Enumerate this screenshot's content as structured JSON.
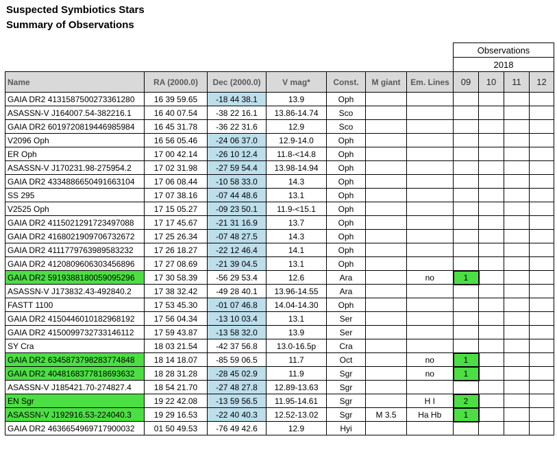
{
  "title": {
    "line1": "Suspected Symbiotics Stars",
    "line2": "Summary of Observations"
  },
  "observations_header": {
    "title": "Observations",
    "year": "2018",
    "months": [
      "09",
      "10",
      "11",
      "12"
    ]
  },
  "columns": {
    "name": "Name",
    "ra": "RA (2000.0)",
    "dec": "Dec (2000.0)",
    "vmag": "V mag*",
    "const": "Const.",
    "mgiant": "M giant",
    "emlines": "Em. Lines"
  },
  "colors": {
    "header_bg": "#D9D9D9",
    "header_text": "#595959",
    "dec_highlight": "#BDDEEB",
    "row_highlight": "#4CDF43",
    "border": "#000000"
  },
  "rows": [
    {
      "name": "GAIA DR2 4131587500273361280",
      "ra": "16 39 59.65",
      "dec": "-18 44 38.1",
      "vmag": "13.9",
      "const": "Oph",
      "mgiant": "",
      "emlines": "",
      "obs09": "",
      "name_green": false,
      "dec_blue": true,
      "obs09_green": false
    },
    {
      "name": "ASASSN-V J164007.54-382216.1",
      "ra": "16 40 07.54",
      "dec": "-38 22 16.1",
      "vmag": "13.86-14.74",
      "const": "Sco",
      "mgiant": "",
      "emlines": "",
      "obs09": "",
      "name_green": false,
      "dec_blue": false,
      "obs09_green": false
    },
    {
      "name": "GAIA DR2 6019720819446985984",
      "ra": "16 45 31.78",
      "dec": "-36 22 31.6",
      "vmag": "12.9",
      "const": "Sco",
      "mgiant": "",
      "emlines": "",
      "obs09": "",
      "name_green": false,
      "dec_blue": false,
      "obs09_green": false
    },
    {
      "name": "V2096 Oph",
      "ra": "16 56 05.46",
      "dec": "-24 06 37.0",
      "vmag": "12.9-14.0",
      "const": "Oph",
      "mgiant": "",
      "emlines": "",
      "obs09": "",
      "name_green": false,
      "dec_blue": true,
      "obs09_green": false
    },
    {
      "name": "ER Oph",
      "ra": "17 00 42.14",
      "dec": "-26 10 12.4",
      "vmag": "11.8-<14.8",
      "const": "Oph",
      "mgiant": "",
      "emlines": "",
      "obs09": "",
      "name_green": false,
      "dec_blue": true,
      "obs09_green": false
    },
    {
      "name": "ASASSN-V J170231.98-275954.2",
      "ra": "17 02 31.98",
      "dec": "-27 59 54.4",
      "vmag": "13.98-14.94",
      "const": "Oph",
      "mgiant": "",
      "emlines": "",
      "obs09": "",
      "name_green": false,
      "dec_blue": true,
      "obs09_green": false
    },
    {
      "name": "GAIA DR2 4334886650491663104",
      "ra": "17 06 08.44",
      "dec": "-10 58 33.0",
      "vmag": "14.3",
      "const": "Oph",
      "mgiant": "",
      "emlines": "",
      "obs09": "",
      "name_green": false,
      "dec_blue": true,
      "obs09_green": false
    },
    {
      "name": "SS 295",
      "ra": "17 07 38.16",
      "dec": "-07 44 48.6",
      "vmag": "13.1",
      "const": "Oph",
      "mgiant": "",
      "emlines": "",
      "obs09": "",
      "name_green": false,
      "dec_blue": true,
      "obs09_green": false
    },
    {
      "name": "V2525 Oph",
      "ra": "17 15 05.27",
      "dec": "-09 23 50.1",
      "vmag": "11.9-<15.1",
      "const": "Oph",
      "mgiant": "",
      "emlines": "",
      "obs09": "",
      "name_green": false,
      "dec_blue": true,
      "obs09_green": false
    },
    {
      "name": "GAIA DR2 4115021291723497088",
      "ra": "17 17 45.67",
      "dec": "-21 31 16.9",
      "vmag": "13.7",
      "const": "Oph",
      "mgiant": "",
      "emlines": "",
      "obs09": "",
      "name_green": false,
      "dec_blue": true,
      "obs09_green": false
    },
    {
      "name": "GAIA DR2 4168021909706732672",
      "ra": "17 25 26.34",
      "dec": "-07 48 27.5",
      "vmag": "14.3",
      "const": "Oph",
      "mgiant": "",
      "emlines": "",
      "obs09": "",
      "name_green": false,
      "dec_blue": true,
      "obs09_green": false
    },
    {
      "name": "GAIA DR2 4111779763989583232",
      "ra": "17 26 18.27",
      "dec": "-22 12 46.4",
      "vmag": "14.1",
      "const": "Oph",
      "mgiant": "",
      "emlines": "",
      "obs09": "",
      "name_green": false,
      "dec_blue": true,
      "obs09_green": false
    },
    {
      "name": "GAIA DR2 4120809606303456896",
      "ra": "17 27 08.69",
      "dec": "-21 39 04.5",
      "vmag": "13.1",
      "const": "Oph",
      "mgiant": "",
      "emlines": "",
      "obs09": "",
      "name_green": false,
      "dec_blue": true,
      "obs09_green": false
    },
    {
      "name": "GAIA DR2 5919388180059095296",
      "ra": "17 30 58.39",
      "dec": "-56 29 53.4",
      "vmag": "12.6",
      "const": "Ara",
      "mgiant": "",
      "emlines": "no",
      "obs09": "1",
      "name_green": true,
      "dec_blue": false,
      "obs09_green": true
    },
    {
      "name": "ASASSN-V J173832.43-492840.2",
      "ra": "17 38 32.42",
      "dec": "-49 28 40.1",
      "vmag": "13.96-14.55",
      "const": "Ara",
      "mgiant": "",
      "emlines": "",
      "obs09": "",
      "name_green": false,
      "dec_blue": false,
      "obs09_green": false
    },
    {
      "name": "FASTT 1100",
      "ra": "17 53 45.30",
      "dec": "-01 07 46.8",
      "vmag": "14.04-14.30",
      "const": "Oph",
      "mgiant": "",
      "emlines": "",
      "obs09": "",
      "name_green": false,
      "dec_blue": true,
      "obs09_green": false
    },
    {
      "name": "GAIA DR2 4150446010182968192",
      "ra": "17 56 04.34",
      "dec": "-13 10 03.4",
      "vmag": "13.1",
      "const": "Ser",
      "mgiant": "",
      "emlines": "",
      "obs09": "",
      "name_green": false,
      "dec_blue": true,
      "obs09_green": false
    },
    {
      "name": "GAIA DR2 4150099732733146112",
      "ra": "17 59 43.87",
      "dec": "-13 58 32.0",
      "vmag": "13.9",
      "const": "Ser",
      "mgiant": "",
      "emlines": "",
      "obs09": "",
      "name_green": false,
      "dec_blue": true,
      "obs09_green": false
    },
    {
      "name": "SY Cra",
      "ra": "18 03 21.54",
      "dec": "-42 37 56.8",
      "vmag": "13.0-16.5p",
      "const": "Cra",
      "mgiant": "",
      "emlines": "",
      "obs09": "",
      "name_green": false,
      "dec_blue": false,
      "obs09_green": false
    },
    {
      "name": "GAIA DR2 6345873798283774848",
      "ra": "18 14 18.07",
      "dec": "-85 59 06.5",
      "vmag": "11.7",
      "const": "Oct",
      "mgiant": "",
      "emlines": "no",
      "obs09": "1",
      "name_green": true,
      "dec_blue": false,
      "obs09_green": true
    },
    {
      "name": "GAIA DR2 4048168377818693632",
      "ra": "18 28 31.28",
      "dec": "-28 45 02.9",
      "vmag": "11.9",
      "const": "Sgr",
      "mgiant": "",
      "emlines": "no",
      "obs09": "1",
      "name_green": true,
      "dec_blue": true,
      "obs09_green": true
    },
    {
      "name": "ASASSN-V J185421.70-274827.4",
      "ra": "18 54 21.70",
      "dec": "-27 48 27.8",
      "vmag": "12.89-13.63",
      "const": "Sgr",
      "mgiant": "",
      "emlines": "",
      "obs09": "",
      "name_green": false,
      "dec_blue": true,
      "obs09_green": false
    },
    {
      "name": "EN Sgr",
      "ra": "19 22 42.08",
      "dec": "-13 59 56.5",
      "vmag": "11.95-14.61",
      "const": "Sgr",
      "mgiant": "",
      "emlines": "H I",
      "obs09": "2",
      "name_green": true,
      "dec_blue": true,
      "obs09_green": true
    },
    {
      "name": "ASASSN-V J192916.53-224040.3",
      "ra": "19 29 16.53",
      "dec": "-22 40 40.3",
      "vmag": "12.52-13.02",
      "const": "Sgr",
      "mgiant": "M 3.5",
      "emlines": "Ha Hb",
      "obs09": "1",
      "name_green": true,
      "dec_blue": true,
      "obs09_green": true
    },
    {
      "name": "GAIA DR2 4636654969717900032",
      "ra": "01 50 49.53",
      "dec": "-76 49 42.6",
      "vmag": "12.9",
      "const": "Hyi",
      "mgiant": "",
      "emlines": "",
      "obs09": "",
      "name_green": false,
      "dec_blue": false,
      "obs09_green": false
    }
  ]
}
